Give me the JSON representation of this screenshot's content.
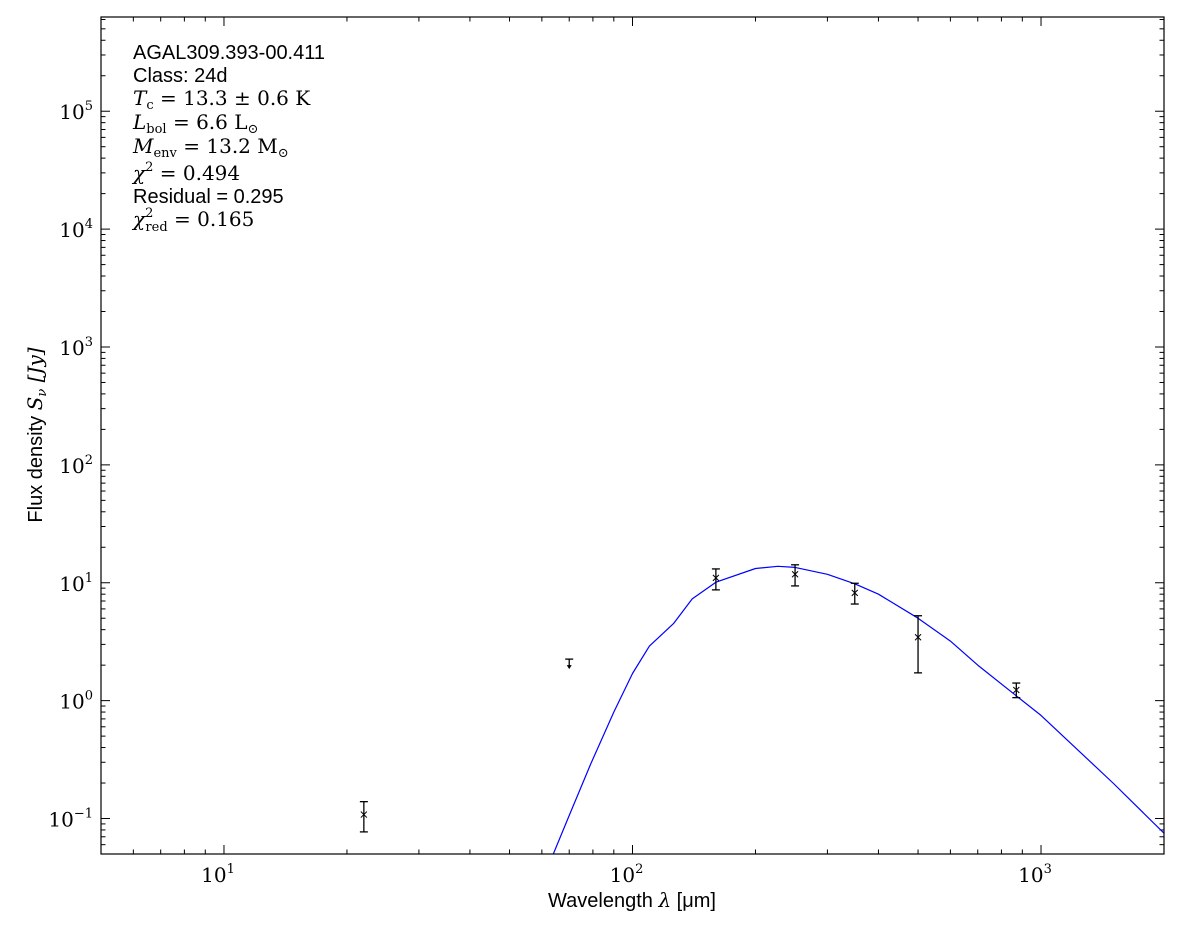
{
  "chart_data": {
    "type": "scatter",
    "xlabel": {
      "text": "Wavelength ",
      "sym": "λ",
      "unit": " [μm]"
    },
    "ylabel": {
      "text": "Flux density ",
      "sym": "S",
      "sub": "ν",
      "unit": " [Jy]"
    },
    "xscale": "log",
    "yscale": "log",
    "xlim": [
      5,
      2000
    ],
    "ylim": [
      0.05,
      630000
    ],
    "x_ticks": [
      {
        "base": "10",
        "exp": "1",
        "value": 10
      },
      {
        "base": "10",
        "exp": "2",
        "value": 100
      },
      {
        "base": "10",
        "exp": "3",
        "value": 1000
      }
    ],
    "y_ticks": [
      {
        "base": "10",
        "exp": "−1",
        "value": 0.1
      },
      {
        "base": "10",
        "exp": "0",
        "value": 1
      },
      {
        "base": "10",
        "exp": "1",
        "value": 10
      },
      {
        "base": "10",
        "exp": "2",
        "value": 100
      },
      {
        "base": "10",
        "exp": "3",
        "value": 1000
      },
      {
        "base": "10",
        "exp": "4",
        "value": 10000
      },
      {
        "base": "10",
        "exp": "5",
        "value": 100000
      }
    ],
    "grid": false,
    "annotation": {
      "source": "AGAL309.393-00.411",
      "class_line": "Class: 24d",
      "tc": {
        "sym": "T",
        "sub": "c",
        "rest": " = 13.3 ± 0.6 K"
      },
      "lbol": {
        "sym": "L",
        "sub": "bol",
        "rest": " = 6.6 L",
        "rest_sub": "⊙"
      },
      "menv": {
        "sym": "M",
        "sub": "env",
        "rest": " = 13.2 M",
        "rest_sub": "⊙"
      },
      "chi2": {
        "sym": "χ",
        "sup": "2",
        "rest": " = 0.494"
      },
      "residual": "Residual = 0.295",
      "chi2red": {
        "sym": "χ",
        "sup": "2",
        "sub": "red",
        "rest": " = 0.165"
      }
    },
    "points": [
      {
        "x": 22,
        "y": 0.108,
        "ylo": 0.077,
        "yhi": 0.139
      },
      {
        "x": 160,
        "y": 11.0,
        "ylo": 8.7,
        "yhi": 13.1
      },
      {
        "x": 250,
        "y": 11.8,
        "ylo": 9.4,
        "yhi": 14.2
      },
      {
        "x": 350,
        "y": 8.2,
        "ylo": 6.6,
        "yhi": 9.9
      },
      {
        "x": 500,
        "y": 3.45,
        "ylo": 1.72,
        "yhi": 5.25
      },
      {
        "x": 870,
        "y": 1.23,
        "ylo": 1.06,
        "yhi": 1.41
      }
    ],
    "upper_limits": [
      {
        "x": 70,
        "y": 2.25
      }
    ],
    "model_curve": {
      "color": "#0000ff",
      "points": [
        [
          64,
          0.05
        ],
        [
          70,
          0.106
        ],
        [
          79,
          0.29
        ],
        [
          90,
          0.8
        ],
        [
          100,
          1.7
        ],
        [
          110,
          2.9
        ],
        [
          126,
          4.5
        ],
        [
          140,
          7.3
        ],
        [
          160,
          10.1
        ],
        [
          200,
          13.2
        ],
        [
          227,
          13.8
        ],
        [
          250,
          13.5
        ],
        [
          300,
          11.8
        ],
        [
          350,
          9.8
        ],
        [
          400,
          8.0
        ],
        [
          500,
          5.0
        ],
        [
          600,
          3.2
        ],
        [
          700,
          2.0
        ],
        [
          870,
          1.1
        ],
        [
          1000,
          0.75
        ],
        [
          1500,
          0.2
        ],
        [
          2000,
          0.075
        ]
      ]
    },
    "marker_color": "#000000"
  }
}
